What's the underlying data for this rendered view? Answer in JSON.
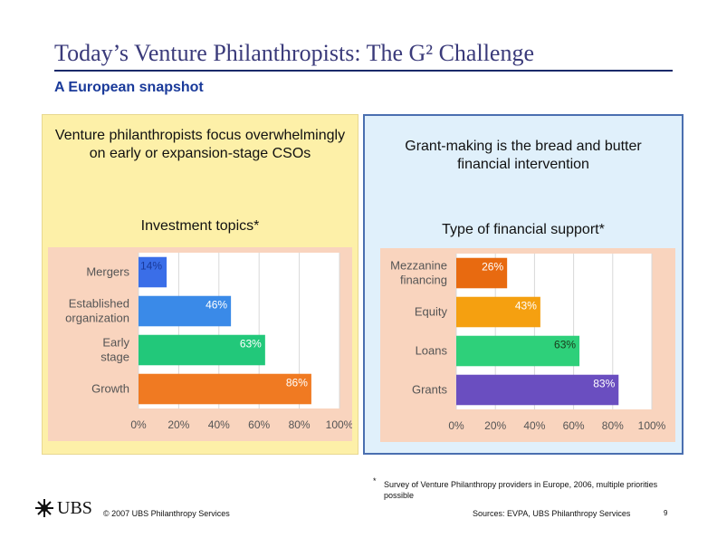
{
  "header": {
    "title": "Today’s Venture Philanthropists: The G² Challenge",
    "subtitle": "A European snapshot"
  },
  "left_panel": {
    "heading": "Venture philanthropists focus overwhelmingly on early or expansion-stage CSOs",
    "chart_title": "Investment topics*"
  },
  "right_panel": {
    "heading": "Grant-making is the bread and butter financial intervention",
    "chart_title": "Type of financial support*"
  },
  "chart_data": [
    {
      "type": "bar",
      "orientation": "horizontal",
      "title": "Investment topics*",
      "categories": [
        "Mergers",
        "Established organization",
        "Early stage",
        "Growth"
      ],
      "values": [
        14,
        46,
        63,
        86
      ],
      "value_labels": [
        "14%",
        "46%",
        "63%",
        "86%"
      ],
      "colors": [
        "#3a6ee8",
        "#3a8ae8",
        "#22c87a",
        "#f07a22"
      ],
      "label_colors": [
        "#1a3a9a",
        "#ffffff",
        "#ffffff",
        "#ffffff"
      ],
      "xlim": [
        0,
        100
      ],
      "xticks": [
        "0%",
        "20%",
        "40%",
        "60%",
        "80%",
        "100%"
      ],
      "grid": true
    },
    {
      "type": "bar",
      "orientation": "horizontal",
      "title": "Type of financial support*",
      "categories": [
        "Mezzanine financing",
        "Equity",
        "Loans",
        "Grants"
      ],
      "values": [
        26,
        43,
        63,
        83
      ],
      "value_labels": [
        "26%",
        "43%",
        "63%",
        "83%"
      ],
      "colors": [
        "#e86a10",
        "#f5a010",
        "#2ed07a",
        "#6a4ec0"
      ],
      "label_colors": [
        "#ffffff",
        "#ffffff",
        "#1a3a1a",
        "#ffffff"
      ],
      "xlim": [
        0,
        100
      ],
      "xticks": [
        "0%",
        "20%",
        "40%",
        "60%",
        "80%",
        "100%"
      ],
      "grid": true
    }
  ],
  "footer": {
    "star": "*",
    "footnote": "Survey of Venture Philanthropy providers in Europe, 2006, multiple priorities possible",
    "logo_text": "UBS",
    "copyright": "© 2007 UBS Philanthropy Services",
    "sources": "Sources: EVPA, UBS Philanthropy Services",
    "page_number": "9"
  }
}
